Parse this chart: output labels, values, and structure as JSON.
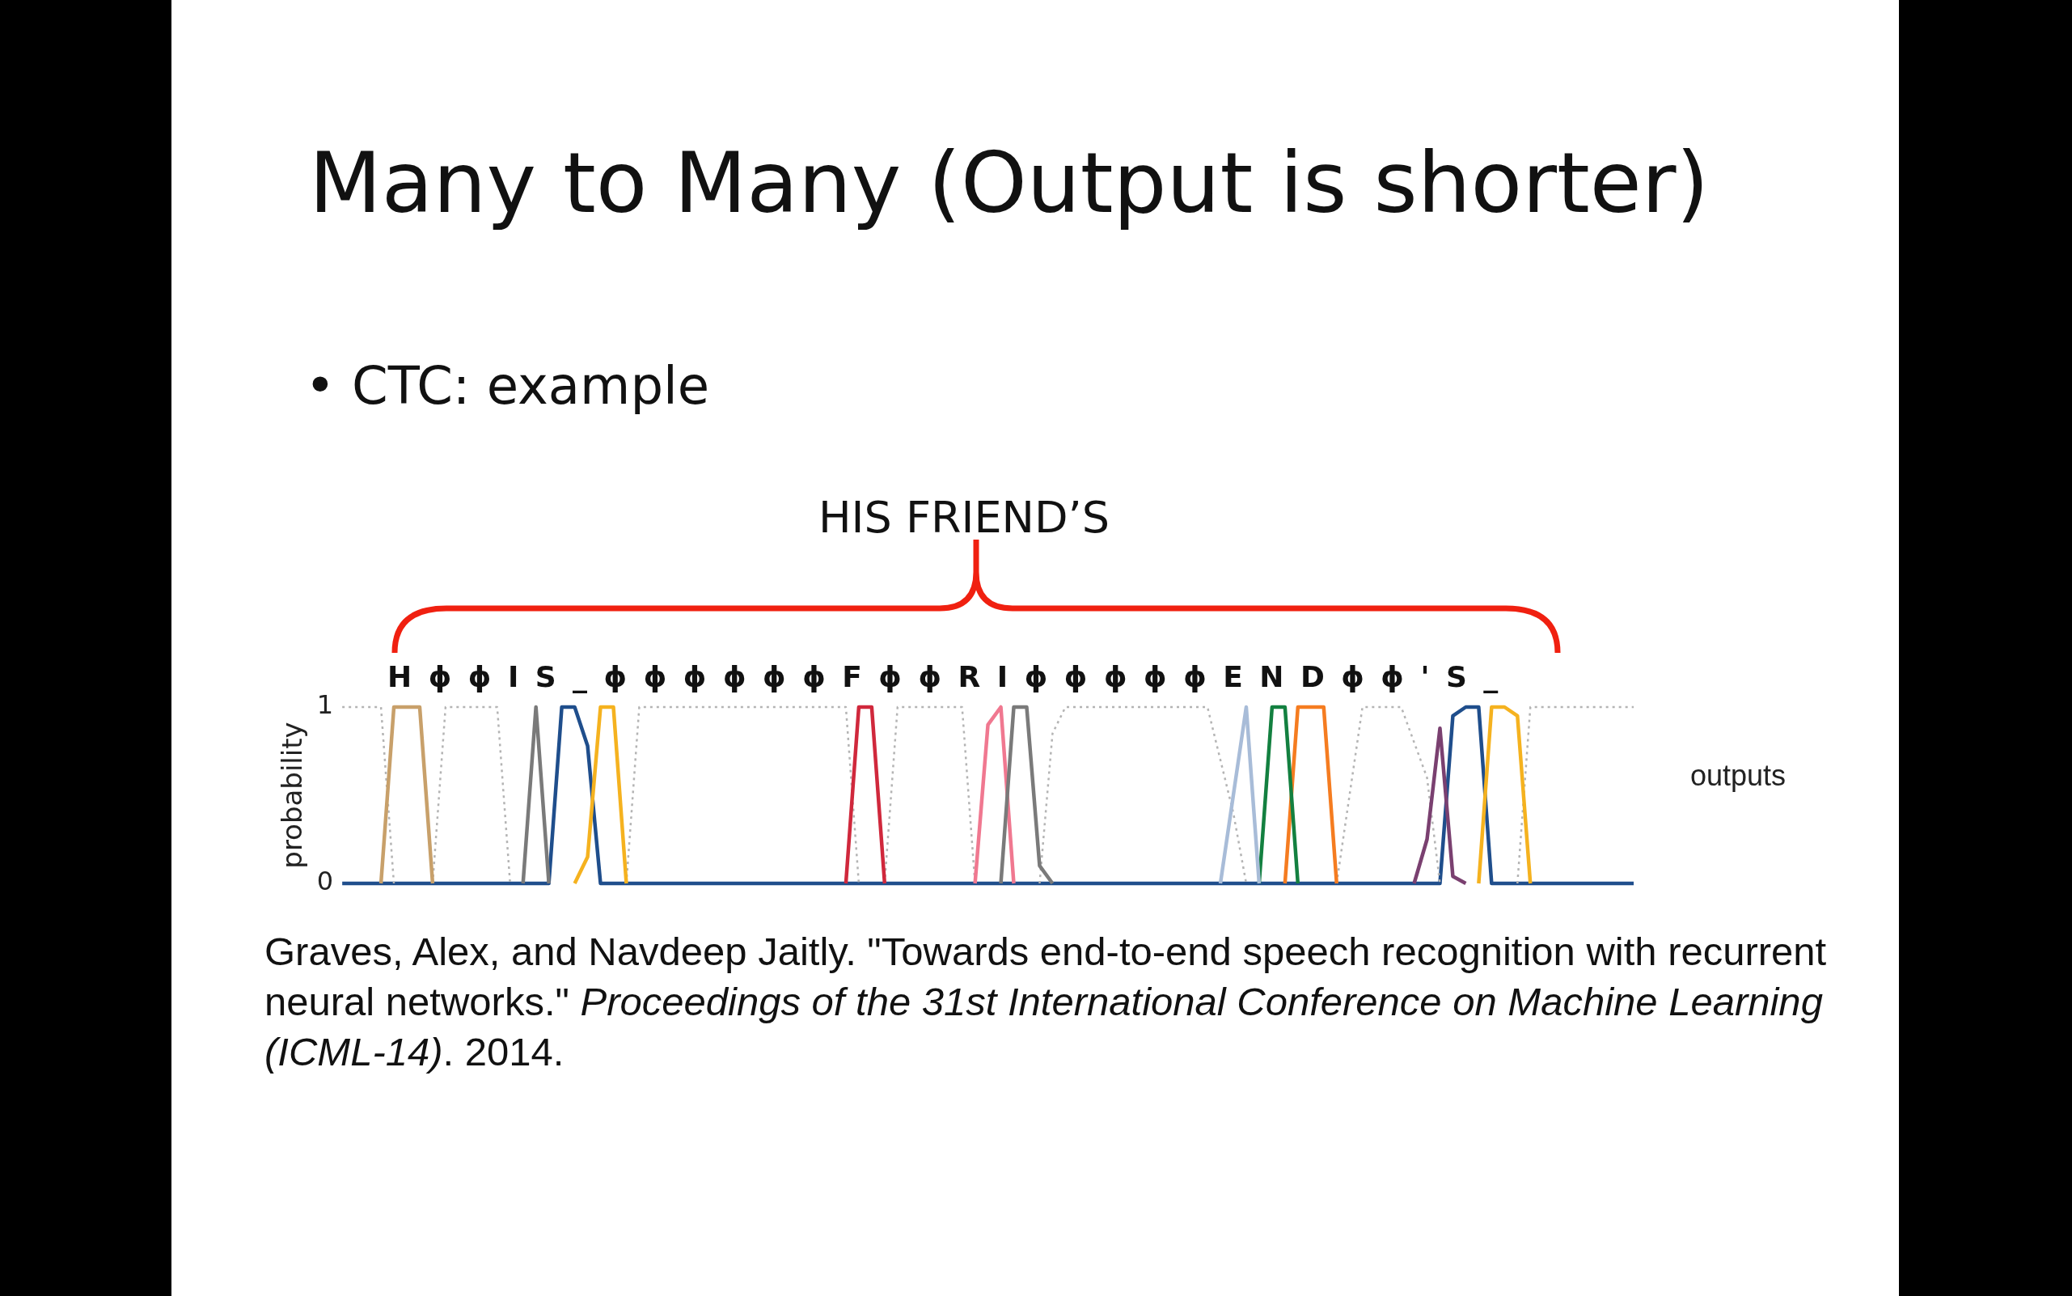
{
  "chart_data": {
    "type": "line",
    "title": "Many to Many (Output is shorter)",
    "subtitle": "• CTC: example",
    "ylabel": "probability",
    "categories": [
      null,
      null,
      null,
      null,
      null,
      null,
      null,
      null,
      null,
      null,
      null,
      null,
      null,
      null,
      null,
      null,
      null,
      null,
      null,
      null,
      null,
      null,
      null,
      null,
      null,
      null,
      null,
      null,
      null,
      null,
      null,
      null,
      null,
      null,
      null,
      null,
      null,
      null,
      null,
      null,
      null,
      null,
      null,
      null,
      null,
      null,
      null,
      null,
      null,
      null,
      null,
      null,
      null,
      null,
      null,
      null,
      null,
      null,
      null,
      null,
      null,
      null,
      null,
      null,
      null,
      null,
      null,
      null,
      null,
      null,
      null,
      null,
      null,
      null,
      null,
      null,
      null,
      null,
      null,
      null,
      null,
      null,
      null,
      null,
      null,
      null,
      null,
      null,
      null,
      null,
      null,
      null,
      null,
      null,
      null,
      null,
      null,
      null,
      null,
      null,
      null
    ],
    "ylim": [
      0,
      1
    ],
    "yticks": [
      0,
      1
    ],
    "tick_labels": "y",
    "marker": "none",
    "series": [
      {
        "color": "#c8a06a",
        "values": [
          null,
          null,
          null,
          0,
          1,
          1,
          1,
          0,
          null,
          null,
          null,
          null,
          null,
          null,
          null,
          null,
          null,
          null,
          null,
          null,
          null,
          null,
          null,
          null,
          null,
          null,
          null,
          null,
          null,
          null,
          null,
          null,
          null,
          null,
          null,
          null,
          null,
          null,
          null,
          null,
          null,
          null,
          null,
          null,
          null,
          null,
          null,
          null,
          null,
          null,
          null,
          null,
          null,
          null,
          null,
          null,
          null,
          null,
          null,
          null,
          null,
          null,
          null,
          null,
          null,
          null,
          null,
          null,
          null,
          null,
          null,
          null,
          null,
          null,
          null,
          null,
          null,
          null,
          null,
          null,
          null,
          null,
          null,
          null,
          null,
          null,
          null,
          null,
          null,
          null,
          null,
          null,
          null,
          null,
          null,
          null,
          null,
          null,
          null,
          null,
          null
        ]
      },
      {
        "color": "#7a7a7a",
        "values": [
          null,
          null,
          null,
          null,
          null,
          null,
          null,
          null,
          null,
          null,
          null,
          null,
          null,
          null,
          0,
          1,
          0,
          null,
          null,
          null,
          null,
          null,
          null,
          null,
          null,
          null,
          null,
          null,
          null,
          null,
          null,
          null,
          null,
          null,
          null,
          null,
          null,
          null,
          null,
          null,
          null,
          null,
          null,
          null,
          null,
          null,
          null,
          null,
          null,
          null,
          null,
          0,
          1,
          1,
          0.1,
          0,
          null,
          null,
          null,
          null,
          null,
          null,
          null,
          null,
          null,
          null,
          null,
          null,
          null,
          null,
          null,
          null,
          null,
          null,
          null,
          null,
          null,
          null,
          null,
          null,
          null,
          null,
          null,
          null,
          null,
          null,
          null,
          null,
          null,
          null,
          null,
          null,
          null,
          null,
          null,
          null,
          null,
          null,
          null,
          null,
          null
        ]
      },
      {
        "color": "#1f4e8c",
        "values": [
          0,
          0,
          0,
          0,
          0,
          0,
          0,
          0,
          0,
          0,
          0,
          0,
          0,
          0,
          0,
          0,
          0,
          1,
          1,
          0.78,
          0,
          0,
          0,
          0,
          0,
          0,
          0,
          0,
          0,
          0,
          0,
          0,
          0,
          0,
          0,
          0,
          0,
          0,
          0,
          0,
          0,
          0,
          0,
          0,
          0,
          0,
          0,
          0,
          0,
          0,
          0,
          0,
          0,
          0,
          0,
          0,
          0,
          0,
          0,
          0,
          0,
          0,
          0,
          0,
          0,
          0,
          0,
          0,
          0,
          0,
          0,
          0,
          0,
          0,
          0,
          0,
          0,
          0,
          0,
          0,
          0,
          0,
          0,
          0,
          0,
          0,
          0.95,
          1,
          1,
          0,
          0,
          0,
          0,
          0,
          0,
          0,
          0,
          0,
          0,
          0,
          0
        ]
      },
      {
        "color": "#f5b21f",
        "values": [
          null,
          null,
          null,
          null,
          null,
          null,
          null,
          null,
          null,
          null,
          null,
          null,
          null,
          null,
          null,
          null,
          null,
          null,
          0,
          0.15,
          1,
          1,
          0,
          null,
          null,
          null,
          null,
          null,
          null,
          null,
          null,
          null,
          null,
          null,
          null,
          null,
          null,
          null,
          null,
          null,
          null,
          null,
          null,
          null,
          null,
          null,
          null,
          null,
          null,
          null,
          null,
          null,
          null,
          null,
          null,
          null,
          null,
          null,
          null,
          null,
          null,
          null,
          null,
          null,
          null,
          null,
          null,
          null,
          null,
          null,
          null,
          null,
          null,
          null,
          null,
          null,
          null,
          null,
          null,
          null,
          null,
          null,
          null,
          null,
          null,
          null,
          null,
          null,
          0,
          1,
          1,
          0.95,
          0,
          null,
          null,
          null,
          null,
          null,
          null,
          null,
          null
        ]
      },
      {
        "color": "#d0283c",
        "values": [
          null,
          null,
          null,
          null,
          null,
          null,
          null,
          null,
          null,
          null,
          null,
          null,
          null,
          null,
          null,
          null,
          null,
          null,
          null,
          null,
          null,
          null,
          null,
          null,
          null,
          null,
          null,
          null,
          null,
          null,
          null,
          null,
          null,
          null,
          null,
          null,
          null,
          null,
          null,
          0,
          1,
          1,
          0,
          null,
          null,
          null,
          null,
          null,
          null,
          null,
          null,
          null,
          null,
          null,
          null,
          null,
          null,
          null,
          null,
          null,
          null,
          null,
          null,
          null,
          null,
          null,
          null,
          null,
          null,
          null,
          null,
          null,
          null,
          null,
          null,
          null,
          null,
          null,
          null,
          null,
          null,
          null,
          null,
          null,
          null,
          null,
          null,
          null,
          null,
          null,
          null,
          null,
          null,
          null,
          null,
          null,
          null,
          null,
          null,
          null,
          null
        ]
      },
      {
        "color": "#f07890",
        "values": [
          null,
          null,
          null,
          null,
          null,
          null,
          null,
          null,
          null,
          null,
          null,
          null,
          null,
          null,
          null,
          null,
          null,
          null,
          null,
          null,
          null,
          null,
          null,
          null,
          null,
          null,
          null,
          null,
          null,
          null,
          null,
          null,
          null,
          null,
          null,
          null,
          null,
          null,
          null,
          null,
          null,
          null,
          null,
          null,
          null,
          null,
          null,
          null,
          null,
          0,
          0.9,
          1,
          0,
          null,
          null,
          null,
          null,
          null,
          null,
          null,
          null,
          null,
          null,
          null,
          null,
          null,
          null,
          null,
          null,
          null,
          null,
          null,
          null,
          null,
          null,
          null,
          null,
          null,
          null,
          null,
          null,
          null,
          null,
          null,
          null,
          null,
          null,
          null,
          null,
          null,
          null,
          null,
          null,
          null,
          null,
          null,
          null,
          null,
          null,
          null,
          null
        ]
      },
      {
        "color": "#a8bcd8",
        "values": [
          null,
          null,
          null,
          null,
          null,
          null,
          null,
          null,
          null,
          null,
          null,
          null,
          null,
          null,
          null,
          null,
          null,
          null,
          null,
          null,
          null,
          null,
          null,
          null,
          null,
          null,
          null,
          null,
          null,
          null,
          null,
          null,
          null,
          null,
          null,
          null,
          null,
          null,
          null,
          null,
          null,
          null,
          null,
          null,
          null,
          null,
          null,
          null,
          null,
          null,
          null,
          null,
          null,
          null,
          null,
          null,
          null,
          null,
          null,
          null,
          null,
          null,
          null,
          null,
          null,
          null,
          null,
          null,
          0,
          0.5,
          1,
          0,
          null,
          null,
          null,
          null,
          null,
          null,
          null,
          null,
          null,
          null,
          null,
          null,
          null,
          null,
          null,
          null,
          null,
          null,
          null,
          null,
          null,
          null,
          null,
          null,
          null,
          null,
          null,
          null,
          null
        ]
      },
      {
        "color": "#138040",
        "values": [
          null,
          null,
          null,
          null,
          null,
          null,
          null,
          null,
          null,
          null,
          null,
          null,
          null,
          null,
          null,
          null,
          null,
          null,
          null,
          null,
          null,
          null,
          null,
          null,
          null,
          null,
          null,
          null,
          null,
          null,
          null,
          null,
          null,
          null,
          null,
          null,
          null,
          null,
          null,
          null,
          null,
          null,
          null,
          null,
          null,
          null,
          null,
          null,
          null,
          null,
          null,
          null,
          null,
          null,
          null,
          null,
          null,
          null,
          null,
          null,
          null,
          null,
          null,
          null,
          null,
          null,
          null,
          null,
          null,
          null,
          null,
          0,
          1,
          1,
          0,
          null,
          null,
          null,
          null,
          null,
          null,
          null,
          null,
          null,
          null,
          null,
          null,
          null,
          null,
          null,
          null,
          null,
          null,
          null,
          null,
          null,
          null,
          null,
          null,
          null,
          null
        ]
      },
      {
        "color": "#f57c20",
        "values": [
          null,
          null,
          null,
          null,
          null,
          null,
          null,
          null,
          null,
          null,
          null,
          null,
          null,
          null,
          null,
          null,
          null,
          null,
          null,
          null,
          null,
          null,
          null,
          null,
          null,
          null,
          null,
          null,
          null,
          null,
          null,
          null,
          null,
          null,
          null,
          null,
          null,
          null,
          null,
          null,
          null,
          null,
          null,
          null,
          null,
          null,
          null,
          null,
          null,
          null,
          null,
          null,
          null,
          null,
          null,
          null,
          null,
          null,
          null,
          null,
          null,
          null,
          null,
          null,
          null,
          null,
          null,
          null,
          null,
          null,
          null,
          null,
          null,
          0,
          1,
          1,
          1,
          0,
          null,
          null,
          null,
          null,
          null,
          null,
          null,
          null,
          null,
          null,
          null,
          null,
          null,
          null,
          null,
          null,
          null,
          null,
          null,
          null,
          null,
          null,
          null
        ]
      },
      {
        "color": "#7a4070",
        "values": [
          null,
          null,
          null,
          null,
          null,
          null,
          null,
          null,
          null,
          null,
          null,
          null,
          null,
          null,
          null,
          null,
          null,
          null,
          null,
          null,
          null,
          null,
          null,
          null,
          null,
          null,
          null,
          null,
          null,
          null,
          null,
          null,
          null,
          null,
          null,
          null,
          null,
          null,
          null,
          null,
          null,
          null,
          null,
          null,
          null,
          null,
          null,
          null,
          null,
          null,
          null,
          null,
          null,
          null,
          null,
          null,
          null,
          null,
          null,
          null,
          null,
          null,
          null,
          null,
          null,
          null,
          null,
          null,
          null,
          null,
          null,
          null,
          null,
          null,
          null,
          null,
          null,
          null,
          null,
          null,
          null,
          null,
          null,
          0,
          0.25,
          0.88,
          0.04,
          0,
          null,
          null,
          null,
          null,
          null,
          null,
          null,
          null,
          null,
          null,
          null,
          null,
          null
        ]
      },
      {
        "color": "#b4b4b4",
        "line_style": "dotted",
        "values": [
          1,
          1,
          1,
          1,
          0,
          null,
          null,
          0,
          1,
          1,
          1,
          1,
          1,
          0,
          null,
          null,
          null,
          null,
          null,
          null,
          null,
          null,
          0,
          1,
          1,
          1,
          1,
          1,
          1,
          1,
          1,
          1,
          1,
          1,
          1,
          1,
          1,
          1,
          1,
          1,
          0,
          null,
          0,
          1,
          1,
          1,
          1,
          1,
          1,
          0,
          null,
          null,
          null,
          null,
          0,
          0.85,
          1,
          1,
          1,
          1,
          1,
          1,
          1,
          1,
          1,
          1,
          1,
          1,
          0.7,
          0.4,
          0,
          null,
          null,
          null,
          null,
          null,
          null,
          0,
          0.5,
          1,
          1,
          1,
          1,
          0.8,
          0.6,
          0,
          null,
          null,
          null,
          null,
          null,
          0,
          1,
          1,
          1,
          1,
          1,
          1,
          1,
          1,
          1
        ]
      }
    ],
    "annotations": [
      "Graves, Alex, and Navdeep Jaitly. \"Towards end-to-end speech recognition with recurrent neural networks.\" ",
      "Proceedings of the 31st International Conference on Machine Learning (ICML-14)",
      ". 2014.",
      "HIS FRIEND’S",
      "outputs",
      "H ϕ ϕ I S _ ϕ ϕ ϕ ϕ ϕ ϕ F ϕ ϕ R I ϕ ϕ ϕ ϕ ϕ E N D ϕ ϕ ' S _"
    ]
  }
}
